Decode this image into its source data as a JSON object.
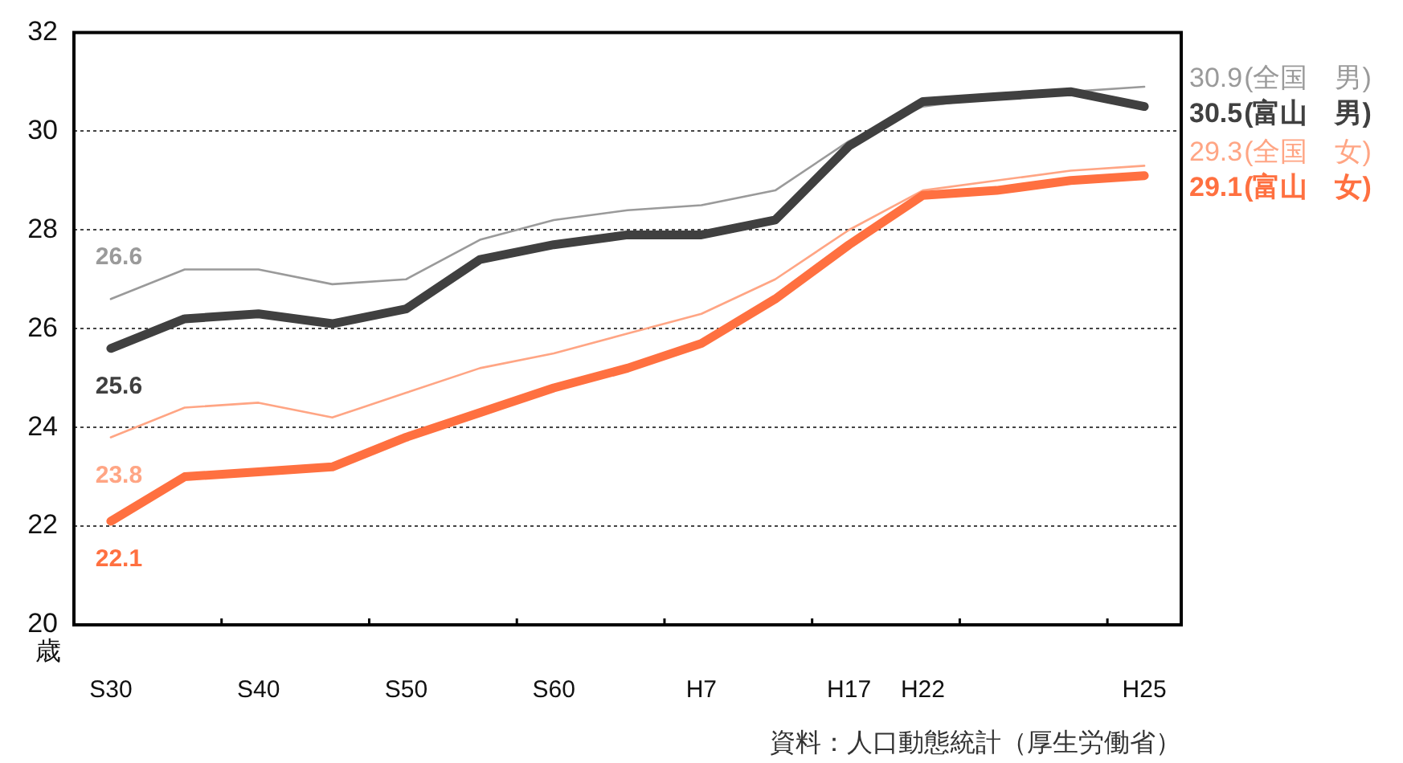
{
  "chart_data": {
    "type": "line",
    "ylabel": "歳",
    "categories": [
      "S30",
      null,
      "S40",
      null,
      "S50",
      null,
      "S60",
      null,
      "H7",
      null,
      "H17",
      "H22",
      null,
      null,
      "H25"
    ],
    "ylim": [
      20,
      32
    ],
    "yticks": [
      20,
      22,
      24,
      26,
      28,
      30,
      32
    ],
    "grid": "y",
    "legend": false,
    "marker": "none",
    "line_style": "solid",
    "annotations": [
      "資料：人口動態統計（厚生労働省）"
    ],
    "series": [
      {
        "name": "(全国　男)",
        "color": "#9a9a9a",
        "values": [
          26.6,
          27.2,
          27.2,
          26.9,
          27.0,
          27.8,
          28.2,
          28.4,
          28.5,
          28.8,
          29.8,
          30.5,
          30.7,
          30.8,
          30.9
        ],
        "value_labels": [
          "26.6",
          null,
          null,
          null,
          null,
          null,
          null,
          null,
          null,
          null,
          null,
          null,
          null,
          null,
          "30.9"
        ]
      },
      {
        "name": "(富山　男)",
        "color": "#404040",
        "values": [
          25.6,
          26.2,
          26.3,
          26.1,
          26.4,
          27.4,
          27.7,
          27.9,
          27.9,
          28.2,
          29.7,
          30.6,
          30.7,
          30.8,
          30.5
        ],
        "value_labels": [
          "25.6",
          null,
          null,
          null,
          null,
          null,
          null,
          null,
          null,
          null,
          null,
          null,
          null,
          null,
          "30.5"
        ]
      },
      {
        "name": "(全国　女)",
        "color": "#ffa584",
        "values": [
          23.8,
          24.4,
          24.5,
          24.2,
          24.7,
          25.2,
          25.5,
          25.9,
          26.3,
          27.0,
          28.0,
          28.8,
          29.0,
          29.2,
          29.3
        ],
        "value_labels": [
          "23.8",
          null,
          null,
          null,
          null,
          null,
          null,
          null,
          null,
          null,
          null,
          null,
          null,
          null,
          "29.3"
        ]
      },
      {
        "name": "(富山　女)",
        "color": "#ff7040",
        "values": [
          22.1,
          23.0,
          23.1,
          23.2,
          23.8,
          24.3,
          24.8,
          25.2,
          25.7,
          26.6,
          27.7,
          28.7,
          28.8,
          29.0,
          29.1
        ],
        "value_labels": [
          "22.1",
          null,
          null,
          null,
          null,
          null,
          null,
          null,
          null,
          null,
          null,
          null,
          null,
          null,
          "29.1"
        ]
      }
    ]
  }
}
